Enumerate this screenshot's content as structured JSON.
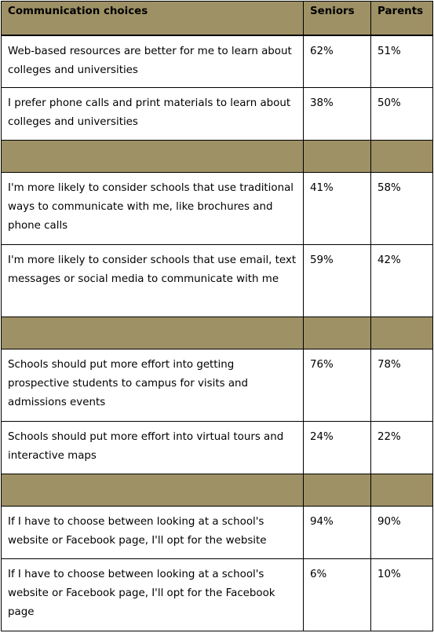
{
  "header": {
    "col1": "Communication choices",
    "col2": "Seniors",
    "col3": "Parents"
  },
  "rows": [
    {
      "statement": "Web-based resources are better for me to learn about colleges and universities",
      "seniors": "62%",
      "parents": "51%"
    },
    {
      "statement": "I prefer phone calls and print materials to learn about colleges and universities",
      "seniors": "38%",
      "parents": "50%"
    },
    {
      "statement": "I'm more likely to consider schools that use traditional ways to communicate with me, like brochures and phone calls",
      "seniors": "41%",
      "parents": "58%"
    },
    {
      "statement": "I'm more likely to consider schools that use email, text messages or social media to communicate with me",
      "seniors": "59%",
      "parents": "42%"
    },
    {
      "statement": "Schools should put more effort into getting prospective students to campus for visits and admissions events",
      "seniors": "76%",
      "parents": "78%"
    },
    {
      "statement": "Schools should put more effort into virtual tours and interactive maps",
      "seniors": "24%",
      "parents": "22%"
    },
    {
      "statement": "If I have to choose between looking at a school's website or Facebook page, I'll opt for the website",
      "seniors": "94%",
      "parents": "90%"
    },
    {
      "statement": "If I have to choose between looking at a school's website or Facebook page, I'll opt for the Facebook page",
      "seniors": "6%",
      "parents": "10%"
    }
  ],
  "colors": {
    "header_fill": "#9e9165",
    "border": "#000000"
  }
}
